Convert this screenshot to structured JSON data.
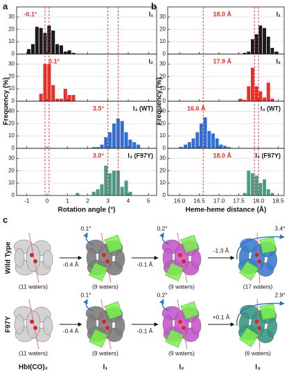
{
  "chart_data": [
    {
      "type": "histogram",
      "panel_label": "a",
      "xlabel": "Rotation angle (°)",
      "ylabel": "Frequency (%)",
      "xlim": [
        -1.5,
        5.4
      ],
      "xticks": [
        -1,
        0,
        1,
        2,
        3,
        4,
        5
      ],
      "ylim": [
        0,
        38
      ],
      "yticks": [
        0,
        10,
        20,
        30
      ],
      "grid": true,
      "vlines": [
        -0.1,
        0.1,
        3.0,
        3.5
      ],
      "vline_color": "#e8302a",
      "series": [
        {
          "name": "I₁",
          "color": "#1a1a1a",
          "annotation": "-0.1°",
          "bins": [
            -1.0,
            -0.8,
            -0.6,
            -0.4,
            -0.2,
            0.0,
            0.2,
            0.4,
            0.6,
            0.8,
            1.0,
            1.2,
            1.4
          ],
          "values": [
            4,
            8,
            22,
            21,
            17,
            23,
            19,
            8,
            7,
            2,
            3,
            1
          ]
        },
        {
          "name": "I₂",
          "color": "#e8302a",
          "annotation": "0.1°",
          "bins": [
            -0.4,
            -0.2,
            0.0,
            0.2,
            0.4,
            0.6,
            0.8,
            1.0,
            1.2,
            1.4
          ],
          "values": [
            6,
            30,
            30,
            13,
            2,
            2,
            10,
            5,
            5
          ]
        },
        {
          "name": "I₃ (WT)",
          "color": "#2f6fd6",
          "annotation": "3.5°",
          "bins": [
            2.2,
            2.4,
            2.6,
            2.8,
            3.0,
            3.2,
            3.4,
            3.6,
            3.8,
            4.0,
            4.2,
            4.4,
            4.6
          ],
          "values": [
            1,
            1,
            3,
            9,
            13,
            20,
            24,
            22,
            13,
            7,
            5,
            3
          ]
        },
        {
          "name": "I₃ (F97Y)",
          "color": "#4f9a86",
          "annotation": "3.0°",
          "bins": [
            1.4,
            1.6,
            1.8,
            2.0,
            2.2,
            2.4,
            2.6,
            2.8,
            3.0,
            3.2,
            3.4,
            3.6,
            3.8,
            4.0,
            4.2
          ],
          "values": [
            2,
            0,
            0,
            0,
            3,
            5,
            9,
            24,
            18,
            20,
            20,
            7,
            12,
            3
          ]
        }
      ]
    },
    {
      "type": "histogram",
      "panel_label": "b",
      "xlabel": "Heme-heme distance (Å)",
      "ylabel": "Frequency (%)",
      "xlim": [
        15.7,
        18.65
      ],
      "xticks": [
        {
          "value": 16.0,
          "label": "16.0"
        },
        {
          "value": 16.5,
          "label": "16.5"
        },
        {
          "value": 17.0,
          "label": "17.0"
        },
        {
          "value": 17.5,
          "label": "17.5"
        },
        {
          "value": 18.0,
          "label": "18.0"
        },
        {
          "value": 18.5,
          "label": "18.5"
        }
      ],
      "ylim": [
        0,
        38
      ],
      "yticks": [
        0,
        10,
        20,
        30
      ],
      "grid": true,
      "vlines": [
        16.6,
        17.9,
        18.0
      ],
      "vline_color": "#e8302a",
      "series": [
        {
          "name": "I₁",
          "color": "#1a1a1a",
          "annotation": "18.0 Å",
          "bins": [
            17.6,
            17.7,
            17.8,
            17.9,
            18.0,
            18.1,
            18.2,
            18.3,
            18.4,
            18.5
          ],
          "values": [
            1,
            2,
            12,
            16,
            23,
            21,
            14,
            5,
            2
          ]
        },
        {
          "name": "I₂",
          "color": "#e8302a",
          "annotation": "17.9 Å",
          "bins": [
            17.5,
            17.6,
            17.7,
            17.8,
            17.9,
            18.0,
            18.1,
            18.2,
            18.3,
            18.4
          ],
          "values": [
            2,
            1,
            12,
            27,
            12,
            8,
            3,
            15,
            2
          ]
        },
        {
          "name": "I₃ (WT)",
          "color": "#2f6fd6",
          "annotation": "16.6 Å",
          "bins": [
            16.0,
            16.1,
            16.2,
            16.3,
            16.4,
            16.5,
            16.6,
            16.7,
            16.8,
            16.9,
            17.0,
            17.1,
            17.2,
            17.3
          ],
          "values": [
            1,
            3,
            5,
            8,
            13,
            20,
            25,
            14,
            12,
            8,
            3,
            2,
            1
          ]
        },
        {
          "name": "I₃ (F97Y)",
          "color": "#4f9a86",
          "annotation": "18.0 Å",
          "bins": [
            17.6,
            17.7,
            17.8,
            17.9,
            18.0,
            18.1,
            18.2,
            18.3,
            18.4
          ],
          "values": [
            2,
            20,
            18,
            16,
            10,
            13,
            5,
            2
          ]
        }
      ]
    }
  ],
  "diagram": {
    "panel_label": "c",
    "states": [
      "HbI(CO)₂",
      "I₁",
      "I₂",
      "I₃"
    ],
    "rows": [
      {
        "label": "Wild Type",
        "waters": [
          "(11 waters)",
          "(9 waters)",
          "(9 waters)",
          "(17 waters)"
        ],
        "shifts": [
          "-0.4 Å",
          "-0.1 Å",
          "-1.3 Å"
        ],
        "angles": [
          "0.1°",
          "0.2°",
          "3.4°"
        ]
      },
      {
        "label": "F97Y",
        "waters": [
          "(11 waters)",
          "(9 waters)",
          "(9 waters)",
          "(6 waters)"
        ],
        "shifts": [
          "-0.4 Å",
          "-0.1 Å",
          "+0.1 Å"
        ],
        "angles": [
          "0.1°",
          "0.2°",
          "2.9°"
        ]
      }
    ]
  }
}
